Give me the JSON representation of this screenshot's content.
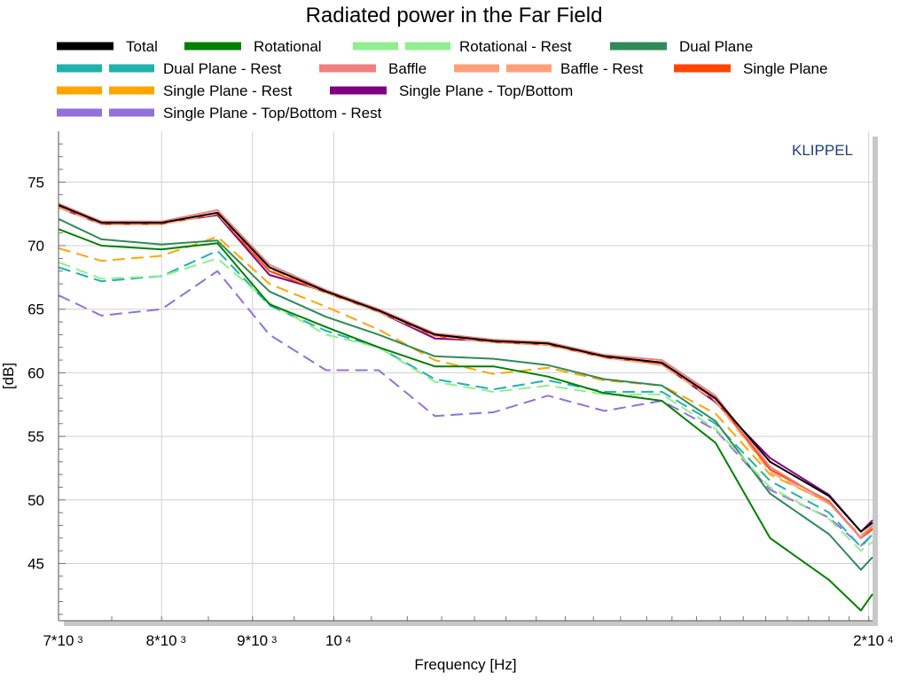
{
  "chart_data": {
    "type": "line",
    "title": "Radiated power in the Far Field",
    "xlabel": "Frequency [Hz]",
    "ylabel": "[dB]",
    "watermark": "KLIPPEL",
    "x_scale": "log",
    "xlim": [
      7000,
      20100
    ],
    "ylim": [
      40.5,
      79
    ],
    "grid": true,
    "legend_placement": "top",
    "x_ticks": [
      {
        "value": 7000,
        "base": "7*10",
        "exp": "3"
      },
      {
        "value": 8000,
        "base": "8*10",
        "exp": "3"
      },
      {
        "value": 9000,
        "base": "9*10",
        "exp": "3"
      },
      {
        "value": 10000,
        "base": "10",
        "exp": "4"
      },
      {
        "value": 20000,
        "base": "2*10",
        "exp": "4"
      }
    ],
    "y_ticks": [
      45,
      50,
      55,
      60,
      65,
      70,
      75
    ],
    "x": [
      7000,
      7400,
      8000,
      8600,
      9200,
      9900,
      10600,
      11400,
      12300,
      13200,
      14200,
      15300,
      16400,
      17600,
      19000,
      19800,
      20100
    ],
    "series": [
      {
        "name": "Total",
        "color": "#000000",
        "dash": false,
        "values": [
          73.2,
          71.8,
          71.8,
          72.6,
          68.3,
          66.4,
          64.9,
          63.0,
          62.5,
          62.3,
          61.3,
          60.8,
          58.0,
          53.0,
          50.3,
          47.5,
          48.2
        ]
      },
      {
        "name": "Rotational",
        "color": "#008000",
        "dash": false,
        "values": [
          71.3,
          70.0,
          69.7,
          70.2,
          65.4,
          63.6,
          62.0,
          60.5,
          60.5,
          59.7,
          58.4,
          57.8,
          54.5,
          47.0,
          43.7,
          41.3,
          42.6
        ]
      },
      {
        "name": "Rotational - Rest",
        "color": "#90ee90",
        "dash": true,
        "values": [
          68.7,
          67.4,
          67.6,
          69.0,
          65.5,
          63.0,
          62.0,
          59.3,
          58.5,
          59.0,
          58.3,
          58.3,
          55.6,
          51.0,
          48.5,
          46.0,
          46.7
        ]
      },
      {
        "name": "Dual Plane",
        "color": "#2e8b57",
        "dash": false,
        "values": [
          72.1,
          70.5,
          70.1,
          70.4,
          66.4,
          64.4,
          63.0,
          61.3,
          61.1,
          60.6,
          59.5,
          59.0,
          56.2,
          50.5,
          47.3,
          44.5,
          45.5
        ]
      },
      {
        "name": "Dual Plane - Rest",
        "color": "#20b2aa",
        "dash": true,
        "values": [
          68.3,
          67.2,
          67.6,
          69.6,
          65.3,
          63.3,
          62.0,
          59.5,
          58.7,
          59.4,
          58.5,
          58.5,
          56.0,
          51.5,
          49.0,
          46.3,
          47.3
        ]
      },
      {
        "name": "Baffle",
        "color": "#f08080",
        "dash": false,
        "values": [
          73.3,
          71.9,
          71.9,
          72.8,
          68.5,
          66.5,
          65.0,
          63.1,
          62.6,
          62.4,
          61.4,
          61.0,
          58.2,
          52.6,
          49.8,
          47.0,
          48.0
        ]
      },
      {
        "name": "Baffle - Rest",
        "color": "#ffa07a",
        "dash": true,
        "values": [
          73.0,
          71.7,
          71.7,
          72.5,
          68.2,
          66.3,
          64.8,
          62.9,
          62.4,
          62.2,
          61.2,
          60.6,
          57.8,
          52.2,
          49.7,
          47.2,
          48.0
        ]
      },
      {
        "name": "Single Plane",
        "color": "#ff4500",
        "dash": false,
        "values": [
          73.1,
          71.7,
          71.7,
          72.5,
          68.0,
          66.3,
          64.8,
          62.9,
          62.4,
          62.2,
          61.2,
          60.7,
          57.9,
          52.4,
          49.9,
          47.0,
          47.7
        ]
      },
      {
        "name": "Single Plane - Rest",
        "color": "#ffa500",
        "dash": true,
        "values": [
          69.8,
          68.8,
          69.2,
          70.7,
          67.0,
          65.2,
          63.4,
          61.0,
          59.9,
          60.4,
          59.4,
          59.0,
          56.8,
          52.0,
          49.8,
          47.0,
          47.8
        ]
      },
      {
        "name": "Single Plane - Top/Bottom",
        "color": "#800080",
        "dash": false,
        "values": [
          73.0,
          71.7,
          71.8,
          72.4,
          67.7,
          66.4,
          64.8,
          62.7,
          62.5,
          62.2,
          61.3,
          60.7,
          57.7,
          53.3,
          50.4,
          47.5,
          48.4
        ]
      },
      {
        "name": "Single Plane - Top/Bottom - Rest",
        "color": "#9370db",
        "dash": true,
        "values": [
          66.1,
          64.5,
          65.0,
          68.0,
          63.0,
          60.2,
          60.2,
          56.6,
          56.9,
          58.2,
          57.0,
          57.8,
          55.5,
          50.8,
          48.6,
          46.4,
          47.3
        ]
      }
    ]
  }
}
